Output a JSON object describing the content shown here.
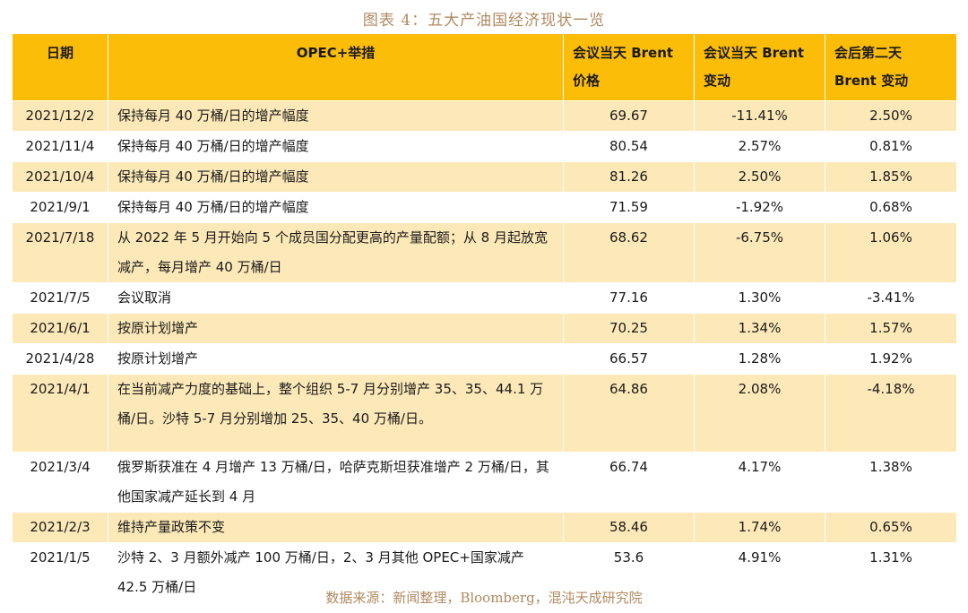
{
  "title": "图表 4：五大产油国经济现状一览",
  "source": "数据来源：新闻整理，Bloomberg，混沌天成研究院",
  "headers": {
    "date": "日期",
    "measure": "OPEC+举措",
    "price": "会议当天 Brent 价格",
    "change_day": "会议当天 Brent 变动",
    "change_next": "会后第二天 Brent 变动"
  },
  "rows": [
    {
      "date": "2021/12/2",
      "measure": "保持每月 40 万桶/日的增产幅度",
      "price": "69.67",
      "chg": "-11.41%",
      "next": "2.50%"
    },
    {
      "date": "2021/11/4",
      "measure": "保持每月 40 万桶/日的增产幅度",
      "price": "80.54",
      "chg": "2.57%",
      "next": "0.81%"
    },
    {
      "date": "2021/10/4",
      "measure": "保持每月 40 万桶/日的增产幅度",
      "price": "81.26",
      "chg": "2.50%",
      "next": "1.85%"
    },
    {
      "date": "2021/9/1",
      "measure": "保持每月 40 万桶/日的增产幅度",
      "price": "71.59",
      "chg": "-1.92%",
      "next": "0.68%"
    },
    {
      "date": "2021/7/18",
      "measure": "从 2022 年 5 月开始向 5 个成员国分配更高的产量配额；从 8 月起放宽减产，每月增产 40 万桶/日",
      "price": "68.62",
      "chg": "-6.75%",
      "next": "1.06%"
    },
    {
      "date": "2021/7/5",
      "measure": "会议取消",
      "price": "77.16",
      "chg": "1.30%",
      "next": "-3.41%"
    },
    {
      "date": "2021/6/1",
      "measure": "按原计划增产",
      "price": "70.25",
      "chg": "1.34%",
      "next": "1.57%"
    },
    {
      "date": "2021/4/28",
      "measure": "按原计划增产",
      "price": "66.57",
      "chg": "1.28%",
      "next": "1.92%"
    },
    {
      "date": "2021/4/1",
      "measure": "在当前减产力度的基础上，整个组织 5-7 月分别增产 35、35、44.1 万桶/日。沙特 5-7 月分别增加 25、35、40 万桶/日。",
      "price": "64.86",
      "chg": "2.08%",
      "next": "-4.18%"
    },
    {
      "date": "2021/3/4",
      "measure": "俄罗斯获准在 4 月增产 13 万桶/日，哈萨克斯坦获准增产 2 万桶/日，其他国家减产延长到 4 月",
      "price": "66.74",
      "chg": "4.17%",
      "next": "1.38%"
    },
    {
      "date": "2021/2/3",
      "measure": "维持产量政策不变",
      "price": "58.46",
      "chg": "1.74%",
      "next": "0.65%"
    },
    {
      "date": "2021/1/5",
      "measure": "沙特 2、3 月额外减产 100 万桶/日，2、3 月其他 OPEC+国家减产 42.5 万桶/日",
      "price": "53.6",
      "chg": "4.91%",
      "next": "1.31%"
    }
  ],
  "colors": {
    "header": "#fbbd08",
    "band": "#fde9b8",
    "caption": "#b08a60"
  }
}
